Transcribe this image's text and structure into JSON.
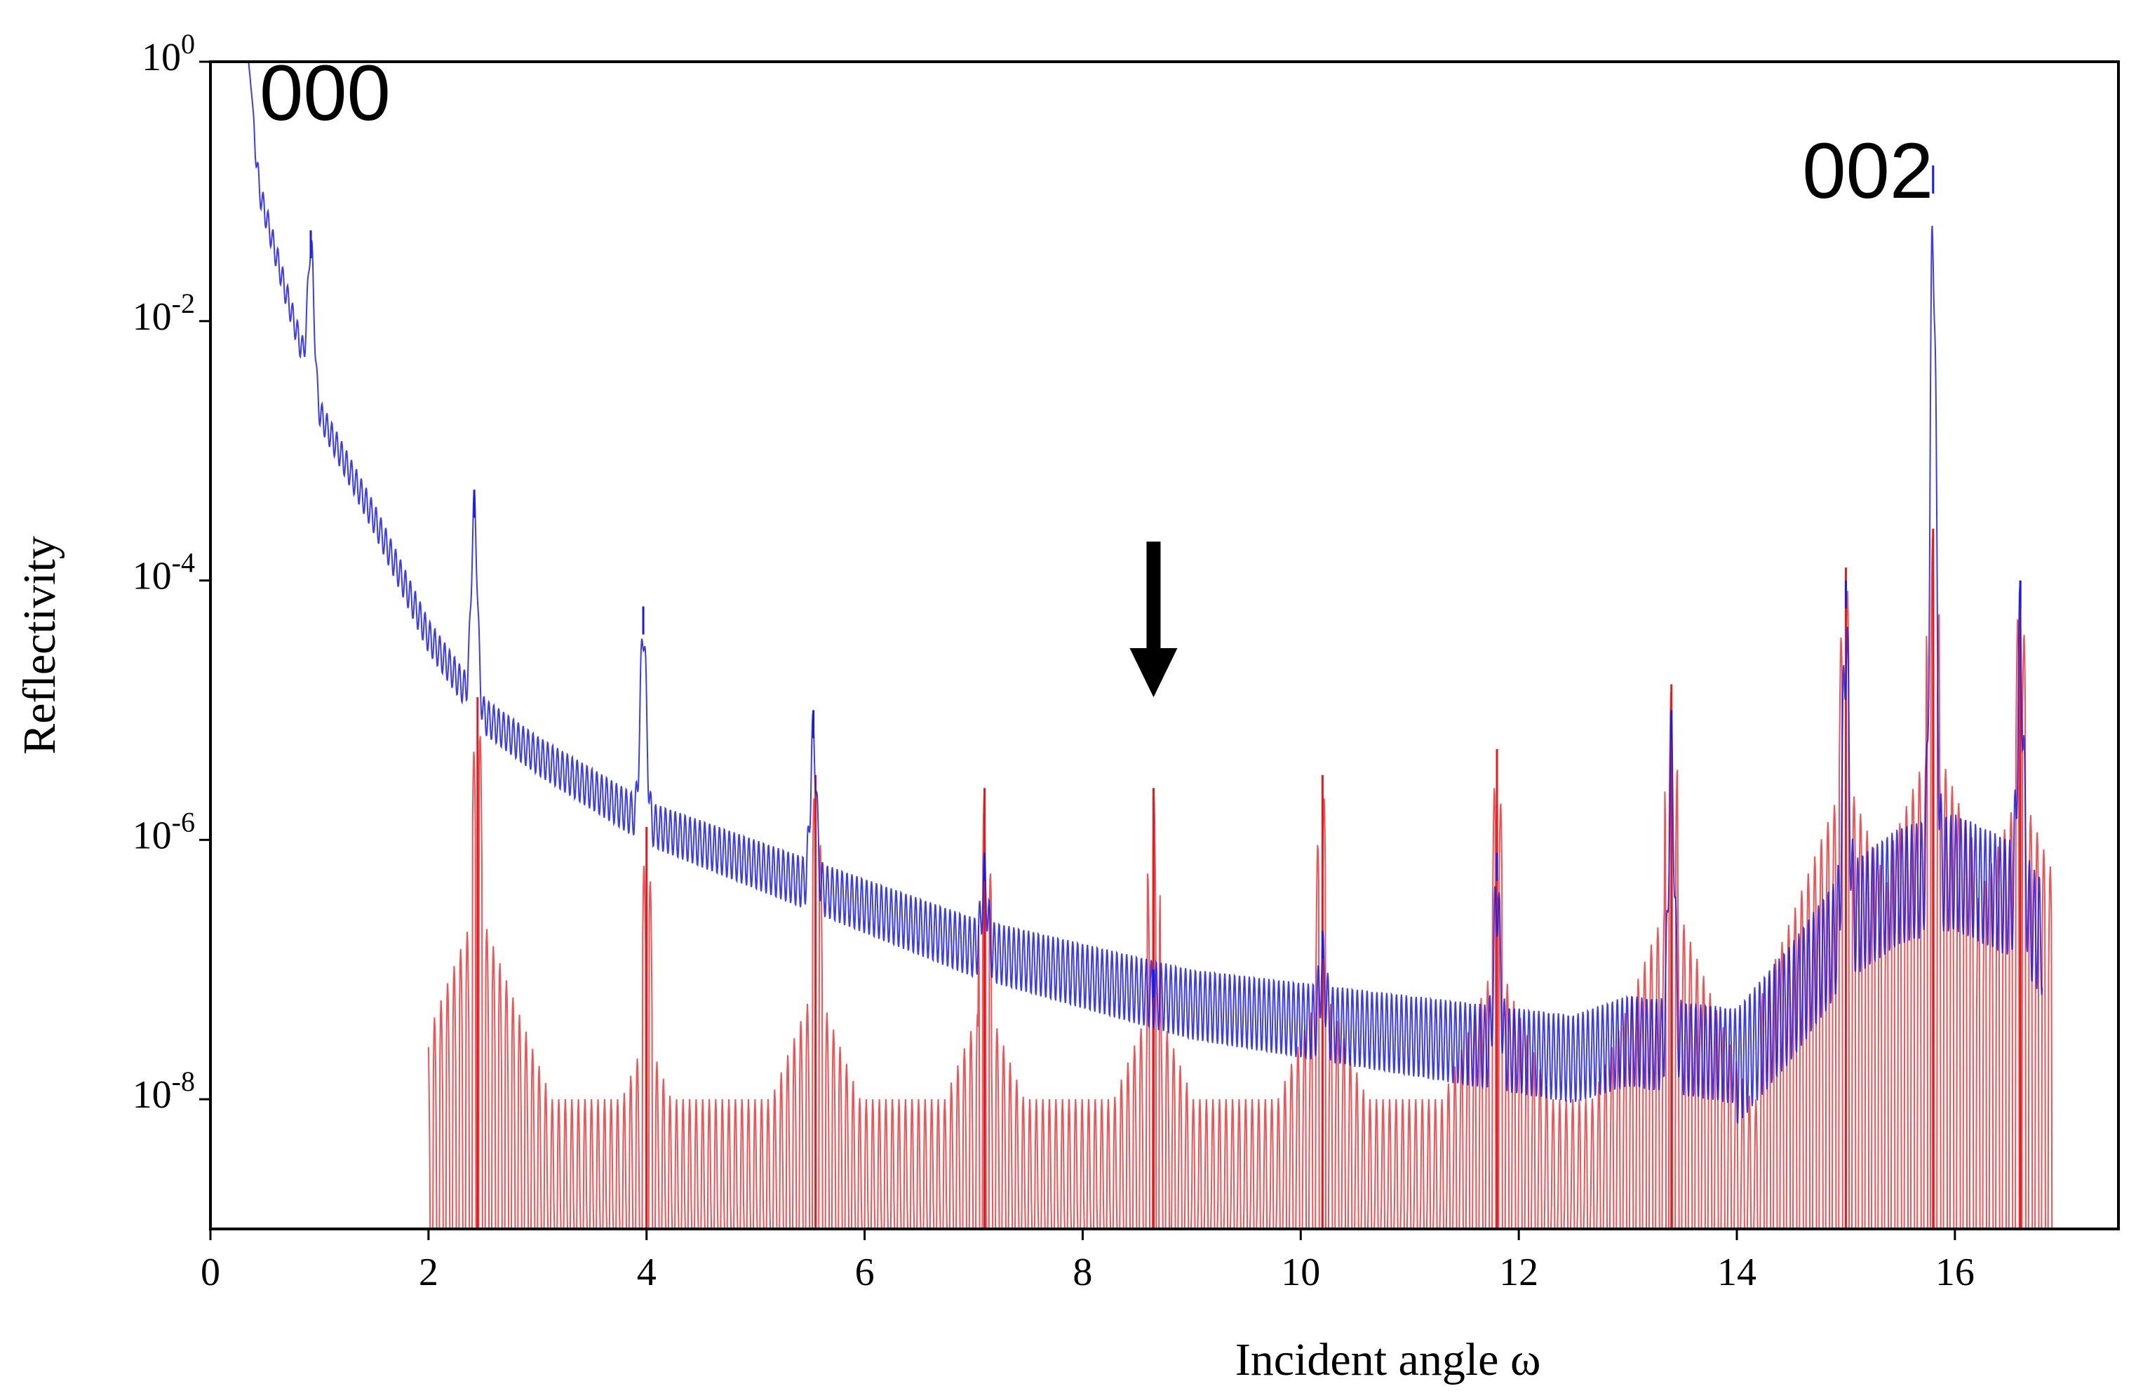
{
  "chart_data": {
    "type": "line",
    "title": "",
    "xlabel": "Incident angle ω",
    "ylabel": "Reflectivity",
    "xlim": [
      0,
      17.5
    ],
    "ylim_log10": [
      -9,
      0
    ],
    "y_scale": "log",
    "x_ticks": [
      {
        "value": 0,
        "label": "0"
      },
      {
        "value": 2,
        "label": "2"
      },
      {
        "value": 4,
        "label": "4"
      },
      {
        "value": 6,
        "label": "6"
      },
      {
        "value": 8,
        "label": "8"
      },
      {
        "value": 10,
        "label": "10"
      },
      {
        "value": 12,
        "label": "12"
      },
      {
        "value": 14,
        "label": "14"
      },
      {
        "value": 16,
        "label": "16"
      }
    ],
    "y_ticks": [
      {
        "exponent": 0,
        "base": "10",
        "exp": "0"
      },
      {
        "exponent": -2,
        "base": "10",
        "exp": "-2"
      },
      {
        "exponent": -4,
        "base": "10",
        "exp": "-4"
      },
      {
        "exponent": -6,
        "base": "10",
        "exp": "-6"
      },
      {
        "exponent": -8,
        "base": "10",
        "exp": "-8"
      }
    ],
    "grid": false,
    "series": [
      {
        "name": "red",
        "color": "#e8191c",
        "x_range": [
          2.0,
          16.9
        ],
        "baseline_log10": -9.0,
        "main_peaks": [
          {
            "x": 2.45,
            "log10": -4.9
          },
          {
            "x": 4.0,
            "log10": -5.9
          },
          {
            "x": 5.55,
            "log10": -5.5
          },
          {
            "x": 7.1,
            "log10": -5.6
          },
          {
            "x": 8.65,
            "log10": -5.6
          },
          {
            "x": 10.2,
            "log10": -5.5
          },
          {
            "x": 11.8,
            "log10": -5.3
          },
          {
            "x": 13.4,
            "log10": -4.8
          },
          {
            "x": 15.0,
            "log10": -3.9
          },
          {
            "x": 15.8,
            "log10": -3.6
          },
          {
            "x": 16.6,
            "log10": -4.0
          }
        ]
      },
      {
        "name": "blue",
        "color": "#1a1ae6",
        "x_range": [
          0.1,
          16.8
        ],
        "envelope": [
          {
            "x": 0.1,
            "log10": 0.0
          },
          {
            "x": 0.35,
            "log10": 0.0
          },
          {
            "x": 0.45,
            "log10": -0.9
          },
          {
            "x": 0.7,
            "log10": -1.7
          },
          {
            "x": 1.0,
            "log10": -2.6
          },
          {
            "x": 1.5,
            "log10": -3.4
          },
          {
            "x": 2.0,
            "log10": -4.3
          },
          {
            "x": 2.5,
            "log10": -4.9
          },
          {
            "x": 3.0,
            "log10": -5.2
          },
          {
            "x": 4.0,
            "log10": -5.7
          },
          {
            "x": 5.0,
            "log10": -6.0
          },
          {
            "x": 6.0,
            "log10": -6.3
          },
          {
            "x": 7.0,
            "log10": -6.6
          },
          {
            "x": 8.0,
            "log10": -6.8
          },
          {
            "x": 9.0,
            "log10": -7.0
          },
          {
            "x": 10.0,
            "log10": -7.1
          },
          {
            "x": 11.0,
            "log10": -7.2
          },
          {
            "x": 12.0,
            "log10": -7.3
          },
          {
            "x": 12.5,
            "log10": -7.35
          },
          {
            "x": 13.0,
            "log10": -7.2
          },
          {
            "x": 14.0,
            "log10": -7.3
          },
          {
            "x": 14.5,
            "log10": -6.8
          },
          {
            "x": 15.0,
            "log10": -6.2
          },
          {
            "x": 15.5,
            "log10": -5.9
          },
          {
            "x": 16.0,
            "log10": -5.8
          },
          {
            "x": 16.5,
            "log10": -6.0
          },
          {
            "x": 16.8,
            "log10": -6.3
          }
        ],
        "main_peaks": [
          {
            "x": 0.92,
            "log10": -1.3
          },
          {
            "x": 2.42,
            "log10": -3.3
          },
          {
            "x": 3.97,
            "log10": -4.2
          },
          {
            "x": 5.53,
            "log10": -5.0
          },
          {
            "x": 7.1,
            "log10": -6.1
          },
          {
            "x": 8.65,
            "log10": -7.0
          },
          {
            "x": 10.2,
            "log10": -6.7
          },
          {
            "x": 11.8,
            "log10": -6.1
          },
          {
            "x": 13.4,
            "log10": -5.0
          },
          {
            "x": 15.0,
            "log10": -4.0
          },
          {
            "x": 15.8,
            "log10": -0.8
          },
          {
            "x": 16.6,
            "log10": -4.0
          }
        ]
      }
    ],
    "annotations": [
      {
        "text": "000",
        "x": 0.45,
        "log10": -0.45
      },
      {
        "text": "002",
        "x": 14.6,
        "log10": -1.05
      }
    ],
    "arrow": {
      "x": 8.65,
      "from_log10": -3.7,
      "to_log10": -4.9
    }
  }
}
